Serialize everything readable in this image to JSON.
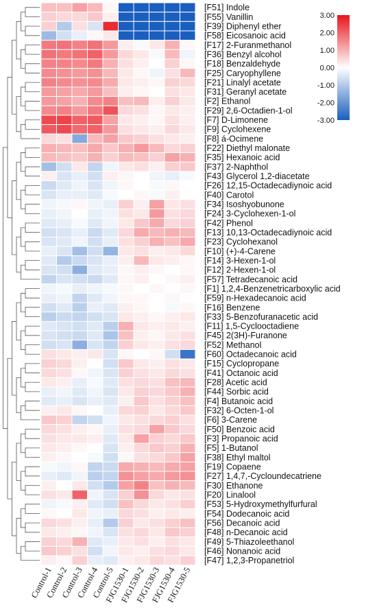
{
  "chart_data": {
    "type": "heatmap",
    "title": "",
    "xlabel": "",
    "ylabel": "",
    "columns": [
      "Control-1",
      "Control-2",
      "Control-3",
      "Control-4",
      "Control-5",
      "FJG1530-1",
      "FJG1530-2",
      "FJG1530-3",
      "FJG1530-4",
      "FJG1530-5"
    ],
    "rows": [
      {
        "label": "[F51] Indole",
        "values": [
          0.8,
          0.8,
          1.2,
          0.9,
          0.1,
          -3,
          -3,
          -3,
          -3,
          -3
        ]
      },
      {
        "label": "[F55] Vanillin",
        "values": [
          0.6,
          0.5,
          0.5,
          0.7,
          0.2,
          -3,
          -3,
          -3,
          -3,
          -3
        ]
      },
      {
        "label": "[F39] Diphenyl ether",
        "values": [
          0.6,
          -1.0,
          0.4,
          -0.5,
          2.7,
          -3,
          -3,
          -3,
          -3,
          -3
        ]
      },
      {
        "label": "[F58] Eicosanoic acid",
        "values": [
          -1.3,
          -0.6,
          -0.3,
          0.1,
          0.3,
          -3,
          -3,
          -3,
          -3,
          -3
        ]
      },
      {
        "label": "[F17] 2-Furanmethanol",
        "values": [
          1.7,
          1.8,
          1.6,
          1.8,
          1.3,
          0.2,
          -0.1,
          0.3,
          1.0,
          0.1
        ]
      },
      {
        "label": "[F36] Benzyl alcohol",
        "values": [
          1.8,
          1.7,
          1.8,
          2.0,
          1.3,
          0.5,
          0.3,
          -0.1,
          0.9,
          -0.2
        ]
      },
      {
        "label": "[F18] Benzaldehyde",
        "values": [
          1.6,
          1.6,
          1.5,
          1.7,
          1.0,
          0.4,
          0.2,
          0.0,
          0.6,
          0.1
        ]
      },
      {
        "label": "[F25] Caryophyllene",
        "values": [
          1.5,
          1.4,
          1.3,
          1.4,
          0.9,
          0.3,
          0.1,
          -0.2,
          0.4,
          0.9
        ]
      },
      {
        "label": "[F21] Linalyl acetate",
        "values": [
          1.6,
          1.5,
          1.4,
          1.5,
          1.1,
          0.3,
          0.2,
          0.1,
          0.6,
          0.5
        ]
      },
      {
        "label": "[F31] Geranyl acetate",
        "values": [
          1.3,
          1.2,
          1.1,
          1.3,
          0.8,
          0.2,
          0.1,
          0.0,
          0.4,
          0.3
        ]
      },
      {
        "label": "[F2] Ethanol",
        "values": [
          1.3,
          1.2,
          1.0,
          1.5,
          1.6,
          0.8,
          0.9,
          0.2,
          0.6,
          0.3
        ]
      },
      {
        "label": "[F29] 2,6-Octadien-1-ol",
        "values": [
          1.5,
          1.6,
          1.3,
          1.7,
          2.2,
          0.5,
          0.4,
          0.1,
          0.3,
          0.2
        ]
      },
      {
        "label": "[F7] D-Limonene",
        "values": [
          2.3,
          2.4,
          2.0,
          2.1,
          1.2,
          0.3,
          0.2,
          0.1,
          0.4,
          0.2
        ]
      },
      {
        "label": "[F9] Cyclohexene",
        "values": [
          2.1,
          2.3,
          1.9,
          2.0,
          1.3,
          0.4,
          0.3,
          0.2,
          0.5,
          0.3
        ]
      },
      {
        "label": "[F8] á-Ocimene",
        "values": [
          0.5,
          0.4,
          -1.6,
          0.9,
          1.2,
          0.7,
          0.6,
          0.4,
          0.3,
          0.2
        ]
      },
      {
        "label": "[F22] Diethyl malonate",
        "values": [
          1.0,
          0.9,
          0.8,
          1.1,
          0.7,
          1.0,
          1.3,
          0.9,
          0.5,
          0.6
        ]
      },
      {
        "label": "[F35] Hexanoic acid",
        "values": [
          0.9,
          0.8,
          0.7,
          1.0,
          0.6,
          0.9,
          0.8,
          0.6,
          1.2,
          1.0
        ]
      },
      {
        "label": "[F37] 2-Naphthol",
        "values": [
          -1.2,
          -0.6,
          0.3,
          -0.8,
          -0.2,
          0.3,
          0.4,
          0.2,
          0.6,
          0.7
        ]
      },
      {
        "label": "[F43] Glycerol 1,2-diacetate",
        "values": [
          0.2,
          -0.5,
          -0.3,
          -0.6,
          0.2,
          0.1,
          0.0,
          -0.2,
          -0.3,
          -0.1
        ]
      },
      {
        "label": "[F26] 12,15-Octadecadiynoic acid",
        "values": [
          -0.7,
          -0.4,
          -0.2,
          -0.5,
          -0.2,
          0.1,
          0.0,
          -0.1,
          0.1,
          0.0
        ]
      },
      {
        "label": "[F40] Carotol",
        "values": [
          -0.5,
          -0.3,
          -0.3,
          -0.4,
          -0.1,
          0.0,
          0.1,
          -0.1,
          0.2,
          0.0
        ]
      },
      {
        "label": "[F34] Isoshyobunone",
        "values": [
          -0.2,
          -0.1,
          0.1,
          -0.2,
          -0.3,
          0.6,
          0.2,
          1.2,
          0.3,
          0.4
        ]
      },
      {
        "label": "[F24] 3-Cyclohexen-1-ol",
        "values": [
          -0.3,
          -0.2,
          0.0,
          -0.3,
          -0.2,
          0.4,
          0.3,
          1.3,
          0.4,
          0.5
        ]
      },
      {
        "label": "[F42] Phenol",
        "values": [
          -0.4,
          -0.3,
          -0.1,
          -0.4,
          -0.2,
          0.3,
          0.7,
          1.1,
          0.5,
          0.6
        ]
      },
      {
        "label": "[F13] 10,13-Octadecadiynoic acid",
        "values": [
          -0.6,
          -0.5,
          -0.3,
          -0.7,
          -0.4,
          0.5,
          1.1,
          0.9,
          1.0,
          0.9
        ]
      },
      {
        "label": "[F23] Cyclohexanol",
        "values": [
          -0.5,
          -0.4,
          -0.2,
          -0.6,
          -0.3,
          0.4,
          0.6,
          1.0,
          0.8,
          1.1
        ]
      },
      {
        "label": "[F10] (+)-4-Carene",
        "values": [
          -0.3,
          -0.5,
          -1.2,
          -0.6,
          -1.4,
          0.3,
          0.4,
          0.2,
          0.3,
          0.5
        ]
      },
      {
        "label": "[F14] 3-Hexen-1-ol",
        "values": [
          -0.4,
          -1.0,
          -0.7,
          -0.5,
          -0.3,
          0.2,
          0.9,
          0.3,
          0.2,
          0.1
        ]
      },
      {
        "label": "[F12] 2-Hexen-1-ol",
        "values": [
          -0.5,
          -0.6,
          -1.5,
          -0.4,
          -0.3,
          0.1,
          0.2,
          0.1,
          0.0,
          0.1
        ]
      },
      {
        "label": "[F57] Tetradecanoic acid",
        "values": [
          -0.8,
          -0.5,
          -0.6,
          -0.7,
          -0.4,
          0.1,
          0.2,
          0.0,
          0.1,
          0.2
        ]
      },
      {
        "label": "[F1] 1,2,4-Benzenetricarboxylic acid",
        "values": [
          -0.2,
          -0.1,
          -0.3,
          -0.2,
          -0.1,
          0.1,
          0.0,
          0.1,
          0.0,
          0.1
        ]
      },
      {
        "label": "[F59] n-Hexadecanoic acid",
        "values": [
          -0.3,
          -0.2,
          -0.8,
          -0.4,
          -0.2,
          0.1,
          0.1,
          0.0,
          0.1,
          0.0
        ]
      },
      {
        "label": "[F16] Benzene",
        "values": [
          -0.6,
          -0.4,
          -0.9,
          -0.3,
          -0.4,
          0.2,
          0.1,
          0.0,
          -0.1,
          0.1
        ]
      },
      {
        "label": "[F33] 5-Benzofuranacetic acid",
        "values": [
          -0.9,
          -0.7,
          -0.8,
          -0.6,
          -0.5,
          0.3,
          0.2,
          0.1,
          0.2,
          0.3
        ]
      },
      {
        "label": "[F11] 1,5-Cyclooctadiene",
        "values": [
          -0.4,
          -0.5,
          -0.6,
          -0.4,
          -0.9,
          1.0,
          0.3,
          0.2,
          0.3,
          0.2
        ]
      },
      {
        "label": "[F45] 2(3H)-Furanone",
        "values": [
          -0.5,
          -0.6,
          -0.7,
          -0.4,
          -1.1,
          0.8,
          0.2,
          0.1,
          0.3,
          0.4
        ]
      },
      {
        "label": "[F52] Methanol",
        "values": [
          -0.6,
          -0.5,
          -1.5,
          -0.5,
          -0.8,
          0.6,
          0.3,
          0.2,
          0.4,
          0.5
        ]
      },
      {
        "label": "[F60] Octadecanoic acid",
        "values": [
          0.4,
          0.3,
          0.2,
          0.3,
          -0.5,
          0.1,
          0.0,
          0.1,
          -0.6,
          -2.6
        ]
      },
      {
        "label": "[F15] Cyclopropane",
        "values": [
          0.6,
          0.5,
          0.2,
          0.0,
          -0.6,
          0.7,
          0.3,
          0.2,
          0.4,
          0.3
        ]
      },
      {
        "label": "[F41] Octanoic acid",
        "values": [
          0.5,
          0.4,
          0.1,
          -0.2,
          -0.5,
          0.6,
          0.4,
          0.3,
          0.5,
          0.4
        ]
      },
      {
        "label": "[F28] Acetic acid",
        "values": [
          0.3,
          0.2,
          -0.3,
          -0.1,
          -0.4,
          0.4,
          0.5,
          0.4,
          0.8,
          0.9
        ]
      },
      {
        "label": "[F44] Sorbic acid",
        "values": [
          -0.3,
          -0.2,
          -0.4,
          -0.2,
          -0.5,
          0.3,
          0.6,
          0.5,
          0.7,
          1.0
        ]
      },
      {
        "label": "[F4] Butanoic acid",
        "values": [
          -0.4,
          -0.3,
          -0.5,
          -0.3,
          -0.4,
          0.2,
          0.7,
          0.4,
          0.6,
          0.8
        ]
      },
      {
        "label": "[F32] 6-Octen-1-ol",
        "values": [
          0.2,
          0.3,
          0.1,
          0.0,
          -0.3,
          0.5,
          0.6,
          0.3,
          0.5,
          0.7
        ]
      },
      {
        "label": "[F6] 3-Carene",
        "values": [
          0.7,
          0.6,
          -0.8,
          -0.6,
          -0.2,
          0.3,
          0.4,
          0.5,
          0.6,
          0.4
        ]
      },
      {
        "label": "[F50] Benzoic acid",
        "values": [
          0.5,
          0.4,
          0.2,
          0.1,
          -0.3,
          0.4,
          0.5,
          1.2,
          0.7,
          0.5
        ]
      },
      {
        "label": "[F3] Propanoic acid",
        "values": [
          0.4,
          0.3,
          0.3,
          0.2,
          -0.4,
          0.3,
          1.2,
          0.6,
          0.5,
          0.7
        ]
      },
      {
        "label": "[F5] 1-Butanol",
        "values": [
          0.3,
          0.2,
          0.1,
          0.0,
          -0.5,
          0.2,
          0.5,
          0.7,
          0.6,
          1.0
        ]
      },
      {
        "label": "[F38] Ethyl maltol",
        "values": [
          0.2,
          0.1,
          0.0,
          -0.1,
          -0.6,
          0.1,
          0.4,
          0.5,
          0.7,
          1.2
        ]
      },
      {
        "label": "[F19] Copaene",
        "values": [
          -0.1,
          -0.2,
          0.1,
          -0.8,
          -0.7,
          1.1,
          1.0,
          0.9,
          1.1,
          1.2
        ]
      },
      {
        "label": "[F27] 1,4,7,-Cycloundecatriene",
        "values": [
          -0.3,
          -0.4,
          -0.2,
          -0.9,
          -0.8,
          1.4,
          1.2,
          1.1,
          1.3,
          1.4
        ]
      },
      {
        "label": "[F30] Ethanone",
        "values": [
          0.2,
          0.0,
          0.3,
          -0.6,
          -1.0,
          1.2,
          1.6,
          0.8,
          1.0,
          0.9
        ]
      },
      {
        "label": "[F20] Linalool",
        "values": [
          0.4,
          0.3,
          2.0,
          -0.2,
          -0.5,
          0.6,
          1.4,
          0.5,
          0.3,
          0.4
        ]
      },
      {
        "label": "[F53] 5-Hydroxymethylfurfural",
        "values": [
          -0.2,
          -0.1,
          0.2,
          -0.4,
          -0.6,
          0.8,
          0.5,
          0.3,
          0.4,
          0.6
        ]
      },
      {
        "label": "[F54] Dodecanoic acid",
        "values": [
          0.1,
          0.0,
          0.3,
          -0.2,
          -0.3,
          0.5,
          0.4,
          0.2,
          0.3,
          0.2
        ]
      },
      {
        "label": "[F56] Decanoic acid",
        "values": [
          0.5,
          0.4,
          0.2,
          -0.3,
          -1.0,
          0.6,
          0.3,
          0.4,
          0.6,
          0.8
        ]
      },
      {
        "label": "[F48] n-Decanoic acid",
        "values": [
          0.3,
          0.2,
          0.1,
          -0.2,
          -0.5,
          0.4,
          0.5,
          0.3,
          0.7,
          0.6
        ]
      },
      {
        "label": "[F49] 5-Thiazoleethanol",
        "values": [
          0.6,
          0.5,
          1.0,
          -0.4,
          -0.3,
          0.3,
          0.4,
          0.2,
          0.4,
          0.3
        ]
      },
      {
        "label": "[F46] Nonanoic acid",
        "values": [
          0.7,
          0.6,
          0.4,
          -0.6,
          -0.2,
          0.3,
          0.2,
          0.4,
          0.5,
          0.3
        ]
      },
      {
        "label": "[F47] 1,2,3-Propanetriol",
        "values": [
          0.2,
          0.1,
          0.6,
          -0.3,
          -0.4,
          0.2,
          0.3,
          0.5,
          0.4,
          0.6
        ]
      }
    ],
    "colorbar": {
      "min": -3,
      "max": 3,
      "ticks": [
        "3.00",
        "2.00",
        "1.00",
        "0.00",
        "-1.00",
        "-2.00",
        "-3.00"
      ],
      "low_color": "#1a5fbf",
      "mid_color": "#ffffff",
      "high_color": "#e8141c"
    },
    "dendrogram": "row clustering tree on left side",
    "grid": false,
    "legend_position": "top-right"
  }
}
